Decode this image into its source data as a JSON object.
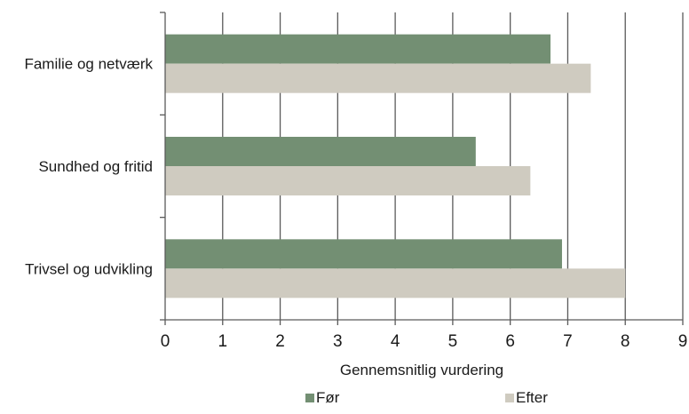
{
  "chart_data": {
    "type": "bar",
    "orientation": "horizontal",
    "categories": [
      "Familie og netværk",
      "Sundhed og fritid",
      "Trivsel og udvikling"
    ],
    "series": [
      {
        "name": "Før",
        "values": [
          6.7,
          5.4,
          6.9
        ],
        "color": "#738f73"
      },
      {
        "name": "Efter",
        "values": [
          7.4,
          6.35,
          8.0
        ],
        "color": "#cfcbc0"
      }
    ],
    "xlabel": "Gennemsnitlig vurdering",
    "ylabel": "",
    "title": "",
    "xlim": [
      0,
      9
    ],
    "xticks": [
      "0",
      "1",
      "2",
      "3",
      "4",
      "5",
      "6",
      "7",
      "8",
      "9"
    ],
    "grid": "vertical",
    "legend": "bottom"
  }
}
